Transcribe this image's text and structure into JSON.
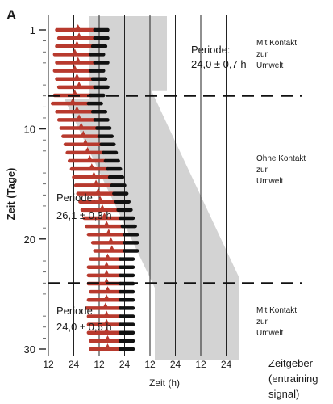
{
  "chart_data": {
    "type": "raster",
    "panel_label": "A",
    "ylabel": "Zeit (Tage)",
    "xlabel": "Zeit (h)",
    "x_axis_note": "Zeitgeber (entraining signal)",
    "y_ticks": [
      1,
      10,
      20,
      30
    ],
    "y_range": [
      1,
      30
    ],
    "x_tick_labels": [
      "12",
      "24",
      "12",
      "24",
      "12",
      "24",
      "12",
      "24"
    ],
    "phase_dividers_day": [
      7,
      24
    ],
    "periods": [
      {
        "label": "Periode:",
        "value": "24,0±0,7h",
        "days": [
          1,
          7
        ],
        "condition": "Mit Kontakt zur Umwelt"
      },
      {
        "label": "Periode:",
        "value": "26,1±0,3h",
        "days": [
          7,
          24
        ],
        "condition": "Ohne Kontakt zur Umwelt"
      },
      {
        "label": "Periode:",
        "value": "24,0±0,5h",
        "days": [
          24,
          30
        ],
        "condition": "Mit Kontakt zur Umwelt"
      }
    ],
    "activity_start_h": [
      4,
      5,
      4,
      3,
      4,
      3,
      4,
      5,
      3,
      2,
      4,
      5,
      6,
      7,
      8,
      9,
      10,
      11,
      12,
      13,
      14,
      15,
      16,
      17,
      18,
      19,
      21,
      22,
      20,
      19,
      19,
      19,
      20,
      19,
      18,
      19,
      19,
      19,
      20,
      20
    ],
    "activity_end_h": [
      22,
      22,
      21,
      20,
      22,
      20,
      21,
      22,
      20,
      19,
      21,
      22,
      23,
      24,
      25,
      26,
      27,
      28,
      29,
      30,
      31,
      32,
      33,
      34,
      35,
      36,
      36,
      36,
      34,
      34,
      34,
      34,
      34,
      34,
      34,
      34,
      34,
      34,
      34,
      34
    ],
    "sleep_bar_h": 6,
    "colors": {
      "activity": "#b83a2e",
      "rest": "#111111",
      "band": "#d3d3d3",
      "marker": "#b83a2e"
    }
  },
  "annotations": {
    "top_period_label": "Periode:",
    "top_period_value": "24,0 ± 0,7 h",
    "mid_period_label": "Periode:",
    "mid_period_value": "26,1 ± 0,3 h",
    "bot_period_label": "Periode:",
    "bot_period_value": "24,0 ± 0,5 h",
    "top_condition": [
      "Mit Kontakt",
      "zur",
      "Umwelt"
    ],
    "mid_condition": [
      "Ohne Kontakt",
      "zur",
      "Umwelt"
    ],
    "bot_condition": [
      "Mit Kontakt",
      "zur",
      "Umwelt"
    ],
    "zeitgeber": [
      "Zeitgeber",
      "(entraining",
      "signal)"
    ]
  }
}
